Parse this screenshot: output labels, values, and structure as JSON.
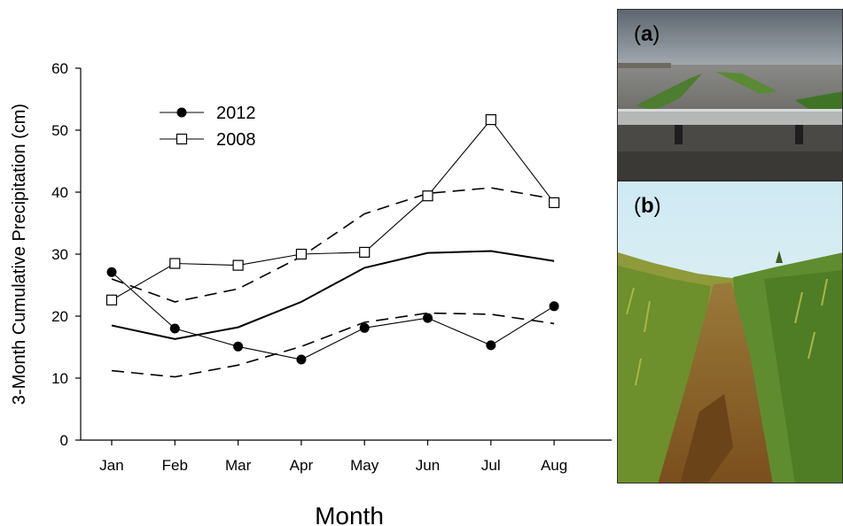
{
  "chart_data": {
    "type": "line",
    "categories": [
      "Jan",
      "Feb",
      "Mar",
      "Apr",
      "May",
      "Jun",
      "Jul",
      "Aug"
    ],
    "ylabel": "3-Month Cumulative Precipitation (cm)",
    "xlabel": "Month",
    "ylim": [
      0,
      60
    ],
    "yticks": [
      0,
      10,
      20,
      30,
      40,
      50,
      60
    ],
    "legend_position": "top-left",
    "grid": false,
    "series": [
      {
        "name": "2012",
        "marker": "filled-circle",
        "line": "solid-thin",
        "values": [
          27.1,
          18.0,
          15.1,
          13.0,
          18.1,
          19.7,
          15.3,
          21.6
        ]
      },
      {
        "name": "2008",
        "marker": "open-square",
        "line": "solid-thin",
        "values": [
          22.6,
          28.5,
          28.2,
          30.0,
          30.3,
          39.4,
          51.7,
          38.3
        ]
      },
      {
        "line": "solid-thick",
        "values": [
          18.5,
          16.3,
          18.2,
          22.3,
          27.8,
          30.2,
          30.5,
          28.9
        ]
      },
      {
        "line": "dashed",
        "values": [
          26.0,
          22.3,
          24.4,
          29.6,
          36.5,
          39.8,
          40.7,
          38.9
        ]
      },
      {
        "line": "dashed",
        "values": [
          11.2,
          10.2,
          12.1,
          15.1,
          19.0,
          20.5,
          20.3,
          18.8
        ]
      }
    ]
  },
  "panels": {
    "a": {
      "open": "(",
      "letter": "a",
      "close": ")"
    },
    "b": {
      "open": "(",
      "letter": "b",
      "close": ")"
    }
  }
}
